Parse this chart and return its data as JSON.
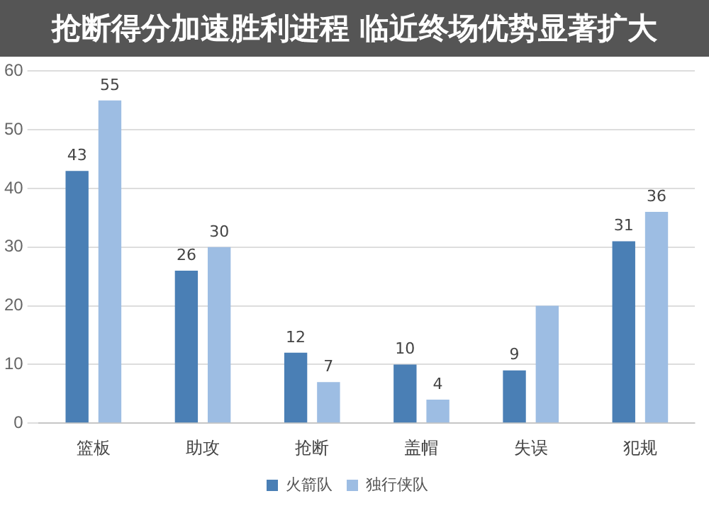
{
  "chart_data": {
    "type": "bar",
    "title": "抢断得分加速胜利进程 临近终场优势显著扩大",
    "categories": [
      "篮板",
      "助攻",
      "抢断",
      "盖帽",
      "失误",
      "犯规"
    ],
    "series": [
      {
        "name": "火箭队",
        "color": "#4a7fb5",
        "values": [
          43,
          26,
          12,
          10,
          9,
          31
        ],
        "value_labels": [
          "43",
          "26",
          "12",
          "10",
          "9",
          "31"
        ]
      },
      {
        "name": "独行侠队",
        "color": "#9dbde3",
        "values": [
          55,
          30,
          7,
          4,
          20,
          36
        ],
        "value_labels": [
          "55",
          "30",
          "7",
          "4",
          null,
          "36"
        ]
      }
    ],
    "ylim": [
      0,
      60
    ],
    "yticks": [
      0,
      10,
      20,
      30,
      40,
      50,
      60
    ],
    "grid": "y",
    "legend": "bottom"
  }
}
